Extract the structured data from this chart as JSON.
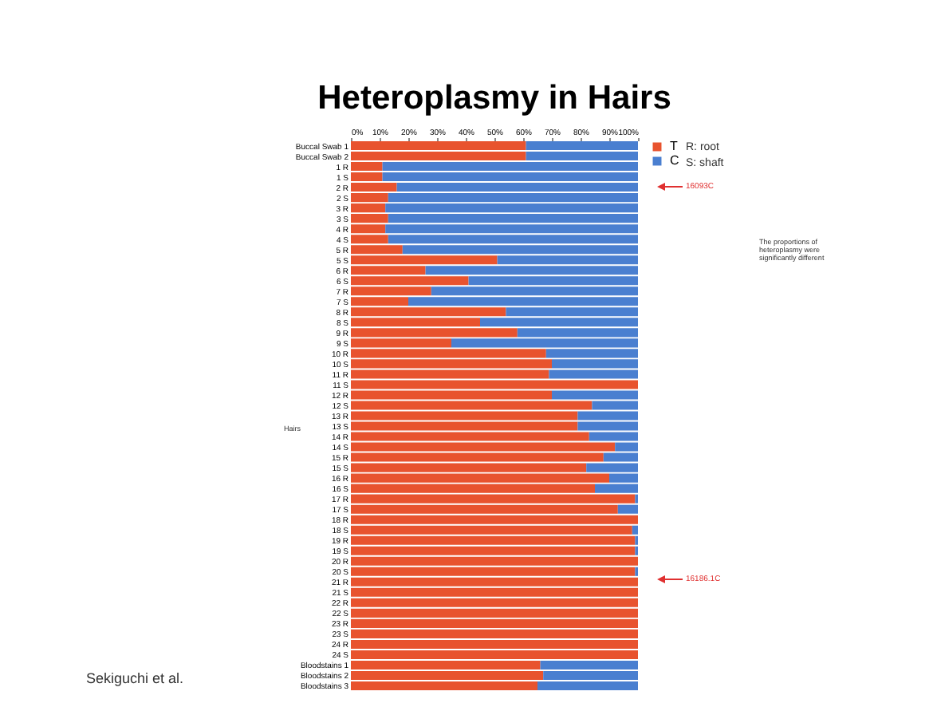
{
  "chart_data": {
    "type": "bar",
    "title": "Heteroplasmy in Hairs",
    "orientation": "horizontal",
    "stacked": true,
    "categories": [
      "Buccal Swab 1",
      "Buccal Swab 2",
      "1 R",
      "1 S",
      "2 R",
      "2 S",
      "3 R",
      "3 S",
      "4 R",
      "4 S",
      "5 R",
      "5 S",
      "6 R",
      "6 S",
      "7 R",
      "7 S",
      "8 R",
      "8 S",
      "9 R",
      "9 S",
      "10 R",
      "10 S",
      "11 R",
      "11 S",
      "12 R",
      "12 S",
      "13 R",
      "13 S",
      "14 R",
      "14 S",
      "15 R",
      "15 S",
      "16 R",
      "16 S",
      "17 R",
      "17 S",
      "18 R",
      "18 S",
      "19 R",
      "19 S",
      "20 R",
      "20 S",
      "21 R",
      "21 S",
      "22 R",
      "22 S",
      "23 R",
      "23 S",
      "24 R",
      "24 S",
      "Bloodstains 1",
      "Bloodstains 2",
      "Bloodstains 3"
    ],
    "series": [
      {
        "name": "T",
        "color": "#e8532e",
        "values": [
          61,
          61,
          11,
          11,
          16,
          13,
          12,
          13,
          12,
          13,
          18,
          51,
          26,
          41,
          28,
          20,
          54,
          45,
          58,
          35,
          68,
          70,
          69,
          100,
          70,
          84,
          79,
          79,
          83,
          92,
          88,
          82,
          90,
          85,
          99,
          93,
          100,
          98,
          99,
          99,
          100,
          99,
          100,
          100,
          100,
          100,
          100,
          100,
          100,
          100,
          66,
          67,
          65
        ]
      },
      {
        "name": "C",
        "color": "#4a7fd0",
        "values": [
          39,
          39,
          89,
          89,
          84,
          87,
          88,
          87,
          88,
          87,
          82,
          49,
          74,
          59,
          72,
          80,
          46,
          55,
          42,
          65,
          32,
          30,
          31,
          0,
          30,
          16,
          21,
          21,
          17,
          8,
          12,
          18,
          10,
          15,
          1,
          7,
          0,
          2,
          1,
          1,
          0,
          1,
          0,
          0,
          0,
          0,
          0,
          0,
          0,
          0,
          34,
          33,
          35
        ]
      }
    ],
    "xlim": [
      0,
      100
    ],
    "xticks": [
      {
        "value": 0,
        "label": "0%"
      },
      {
        "value": 10,
        "label": "10%"
      },
      {
        "value": 20,
        "label": "20%"
      },
      {
        "value": 30,
        "label": "30%"
      },
      {
        "value": 40,
        "label": "40%"
      },
      {
        "value": 50,
        "label": "50%"
      },
      {
        "value": 60,
        "label": "60%"
      },
      {
        "value": 70,
        "label": "70%"
      },
      {
        "value": 80,
        "label": "80%"
      },
      {
        "value": 90,
        "label": "90%"
      },
      {
        "value": 100,
        "label": "100%"
      }
    ],
    "grid": false,
    "legend": "top right",
    "annotations": [
      "R: root",
      "S: shaft",
      "16093C",
      "The proportions of heteroplasmy were significantly different",
      "16186.1C",
      "Hairs",
      "Sekiguchi et al."
    ]
  }
}
